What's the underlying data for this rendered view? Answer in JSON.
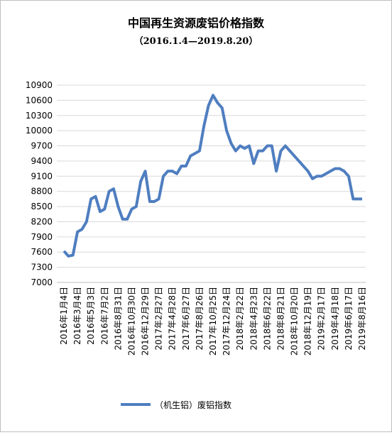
{
  "chart_data": {
    "type": "line",
    "title": "中国再生资源废铝价格指数",
    "subtitle": "（2016.1.4—2019.8.20）",
    "categories": [
      "2016年1月4日",
      null,
      null,
      "2016年3月4日",
      null,
      null,
      "2016年5月3日",
      null,
      null,
      "2016年7月2日",
      null,
      null,
      "2016年8月31日",
      null,
      null,
      "2016年10月30日",
      null,
      null,
      "2016年12月29日",
      null,
      null,
      "2017年2月27日",
      null,
      null,
      "2017年4月28日",
      null,
      null,
      "2017年6月27日",
      null,
      null,
      "2017年8月26日",
      null,
      null,
      "2017年10月25日",
      null,
      null,
      "2017年12月24日",
      null,
      null,
      "2018年2月22日",
      null,
      null,
      "2018年4月23日",
      null,
      null,
      "2018年6月22日",
      null,
      null,
      "2018年8月21日",
      null,
      null,
      "2018年10月20日",
      null,
      null,
      "2018年12月19日",
      null,
      null,
      "2019年2月17日",
      null,
      null,
      "2019年4月18日",
      null,
      null,
      "2019年6月17日",
      null,
      null,
      "2019年8月16日"
    ],
    "series": [
      {
        "name": "（机生铝）废铝指数",
        "color": "#4f7ec0",
        "values": [
          7620,
          7520,
          7540,
          8000,
          8050,
          8200,
          8650,
          8700,
          8400,
          8450,
          8800,
          8850,
          8500,
          8250,
          8250,
          8450,
          8500,
          9000,
          9200,
          8600,
          8600,
          8650,
          9100,
          9200,
          9200,
          9150,
          9300,
          9300,
          9500,
          9550,
          9600,
          10100,
          10500,
          10700,
          10550,
          10450,
          10000,
          9750,
          9600,
          9700,
          9650,
          9700,
          9350,
          9600,
          9600,
          9700,
          9700,
          9200,
          9600,
          9700,
          9600,
          9500,
          9400,
          9300,
          9200,
          9050,
          9100,
          9100,
          9150,
          9200,
          9250,
          9250,
          9200,
          9100,
          8650,
          8650,
          8650
        ]
      }
    ],
    "ylim": [
      7000,
      10900
    ],
    "yticks": [
      7000,
      7300,
      7600,
      7900,
      8200,
      8500,
      8800,
      9100,
      9400,
      9700,
      10000,
      10300,
      10600,
      10900
    ],
    "grid": true
  }
}
